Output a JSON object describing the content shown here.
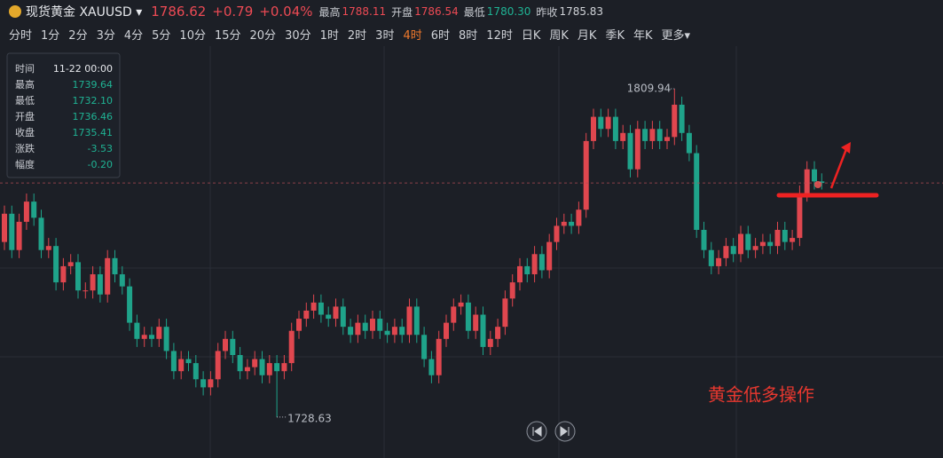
{
  "header": {
    "name": "现货黄金 XAUUSD ▾",
    "price": "1786.62",
    "change": "+0.79",
    "percent": "+0.04%",
    "stats": [
      {
        "label": "最高",
        "value": "1788.11",
        "color": "#ec4a54"
      },
      {
        "label": "开盘",
        "value": "1786.54",
        "color": "#ec4a54"
      },
      {
        "label": "最低",
        "value": "1780.30",
        "color": "#1fb394"
      },
      {
        "label": "昨收",
        "value": "1785.83",
        "color": "#d0d3d8"
      }
    ]
  },
  "toolbar": {
    "items": [
      "分时",
      "1分",
      "2分",
      "3分",
      "4分",
      "5分",
      "10分",
      "15分",
      "20分",
      "30分",
      "1时",
      "2时",
      "3时",
      "4时",
      "6时",
      "8时",
      "12时",
      "日K",
      "周K",
      "月K",
      "季K",
      "年K",
      "更多▾"
    ],
    "active": "4时"
  },
  "tooltip": {
    "rows": [
      [
        "时间",
        "11-22 00:00"
      ],
      [
        "最高",
        "1739.64"
      ],
      [
        "最低",
        "1732.10"
      ],
      [
        "开盘",
        "1736.46"
      ],
      [
        "收盘",
        "1735.41"
      ],
      [
        "涨跌",
        "-3.53"
      ],
      [
        "幅度",
        "-0.20"
      ]
    ]
  },
  "annotation": "黄金低多操作",
  "chart_data": {
    "type": "candlestick",
    "up_color": "#e0474f",
    "down_color": "#1fa38a",
    "ylim": [
      1718.5,
      1820.5
    ],
    "open": [
      1772,
      1779,
      1770,
      1777,
      1782,
      1778,
      1770,
      1771,
      1762,
      1766,
      1767,
      1760,
      1760,
      1764,
      1759,
      1768,
      1764,
      1761,
      1752,
      1748,
      1749,
      1748,
      1751,
      1745,
      1740,
      1743,
      1742,
      1738,
      1736,
      1738,
      1745,
      1748,
      1744,
      1740,
      1741,
      1743,
      1739,
      1742,
      1740,
      1742,
      1750,
      1753,
      1755,
      1757,
      1754,
      1753,
      1756,
      1751,
      1749,
      1752,
      1750,
      1753,
      1750,
      1749,
      1751,
      1749,
      1756,
      1749,
      1743,
      1739,
      1748,
      1752,
      1756,
      1757,
      1750,
      1754,
      1746,
      1748,
      1751,
      1758,
      1762,
      1766,
      1764,
      1769,
      1765,
      1772,
      1776,
      1777,
      1776,
      1780,
      1797,
      1803,
      1800,
      1803,
      1797,
      1799,
      1790,
      1800,
      1797,
      1800,
      1797,
      1798,
      1806,
      1799,
      1794,
      1775,
      1770,
      1766,
      1768,
      1771,
      1769,
      1774,
      1770,
      1771,
      1772,
      1771,
      1775,
      1772,
      1773,
      1784,
      1790,
      1787
    ],
    "high": [
      1781,
      1781,
      1779,
      1784,
      1784,
      1780,
      1773,
      1773,
      1768,
      1769,
      1769,
      1762,
      1766,
      1766,
      1770,
      1770,
      1766,
      1763,
      1754,
      1751,
      1751,
      1753,
      1753,
      1747,
      1745,
      1745,
      1744,
      1740,
      1740,
      1747,
      1750,
      1750,
      1746,
      1743,
      1745,
      1745,
      1744,
      1744,
      1744,
      1752,
      1755,
      1757,
      1759,
      1759,
      1756,
      1758,
      1758,
      1753,
      1754,
      1754,
      1755,
      1755,
      1752,
      1753,
      1753,
      1758,
      1758,
      1751,
      1745,
      1750,
      1754,
      1758,
      1759,
      1759,
      1756,
      1756,
      1750,
      1753,
      1760,
      1764,
      1768,
      1768,
      1771,
      1771,
      1774,
      1778,
      1779,
      1779,
      1782,
      1799,
      1805,
      1805,
      1805,
      1805,
      1801,
      1801,
      1802,
      1802,
      1802,
      1802,
      1800,
      1809.94,
      1808,
      1801,
      1796,
      1777,
      1772,
      1770,
      1773,
      1773,
      1776,
      1776,
      1773,
      1774,
      1774,
      1777,
      1777,
      1775,
      1786,
      1792,
      1792,
      1789
    ],
    "low": [
      1770,
      1768,
      1768,
      1775,
      1776,
      1768,
      1768,
      1760,
      1760,
      1764,
      1758,
      1758,
      1758,
      1757,
      1757,
      1762,
      1759,
      1750,
      1746,
      1746,
      1746,
      1746,
      1743,
      1738,
      1738,
      1740,
      1736,
      1734,
      1734,
      1736,
      1743,
      1742,
      1738,
      1738,
      1739,
      1737,
      1737,
      1728.63,
      1738,
      1740,
      1748,
      1751,
      1753,
      1752,
      1751,
      1751,
      1749,
      1747,
      1747,
      1748,
      1748,
      1748,
      1747,
      1747,
      1747,
      1747,
      1747,
      1741,
      1737,
      1737,
      1746,
      1750,
      1754,
      1748,
      1748,
      1744,
      1744,
      1746,
      1749,
      1756,
      1760,
      1762,
      1762,
      1763,
      1763,
      1770,
      1774,
      1774,
      1774,
      1778,
      1795,
      1798,
      1798,
      1795,
      1795,
      1788,
      1788,
      1795,
      1795,
      1795,
      1795,
      1796,
      1797,
      1792,
      1773,
      1768,
      1764,
      1764,
      1766,
      1767,
      1767,
      1768,
      1768,
      1769,
      1769,
      1769,
      1770,
      1770,
      1771,
      1782,
      1785,
      1785
    ],
    "close": [
      1779,
      1770,
      1777,
      1782,
      1778,
      1770,
      1771,
      1762,
      1766,
      1767,
      1760,
      1760,
      1764,
      1759,
      1768,
      1764,
      1761,
      1752,
      1748,
      1749,
      1748,
      1751,
      1745,
      1740,
      1743,
      1742,
      1738,
      1736,
      1738,
      1745,
      1748,
      1744,
      1740,
      1741,
      1743,
      1739,
      1742,
      1740,
      1742,
      1750,
      1753,
      1755,
      1757,
      1754,
      1753,
      1756,
      1751,
      1749,
      1752,
      1750,
      1753,
      1750,
      1749,
      1751,
      1749,
      1756,
      1749,
      1743,
      1739,
      1748,
      1752,
      1756,
      1757,
      1750,
      1754,
      1746,
      1748,
      1751,
      1758,
      1762,
      1766,
      1764,
      1769,
      1765,
      1772,
      1776,
      1777,
      1776,
      1780,
      1797,
      1803,
      1800,
      1803,
      1797,
      1799,
      1790,
      1800,
      1797,
      1800,
      1797,
      1798,
      1806,
      1799,
      1794,
      1775,
      1770,
      1766,
      1768,
      1771,
      1769,
      1774,
      1770,
      1771,
      1772,
      1771,
      1775,
      1772,
      1773,
      1784,
      1790,
      1787,
      1786.62
    ]
  }
}
